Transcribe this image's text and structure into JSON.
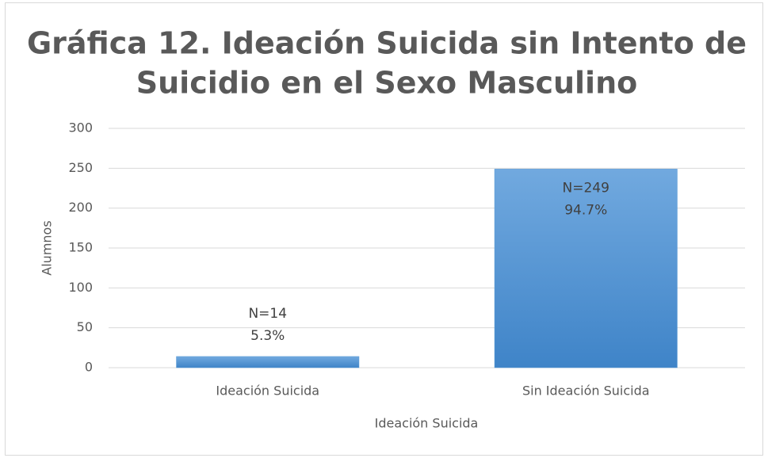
{
  "chart_data": {
    "type": "bar",
    "title": "Gráfica 12. Ideación Suicida sin Intento de Suicidio en el Sexo Masculino",
    "title_lines": [
      "Gráfica 12. Ideación Suicida sin Intento de",
      "Suicidio en el Sexo Masculino"
    ],
    "categories": [
      "Ideación Suicida",
      "Sin Ideación Suicida"
    ],
    "values": [
      14,
      249
    ],
    "value_labels": [
      "N=14",
      "N=249"
    ],
    "percent_labels": [
      "5.3%",
      "94.7%"
    ],
    "color": "#5b9bd5",
    "x_label": "Ideación Suicida",
    "y_label": "Alumnos",
    "ylim": [
      0,
      300
    ],
    "yticks": [
      0,
      50,
      100,
      150,
      200,
      250,
      300
    ],
    "grid": true
  }
}
